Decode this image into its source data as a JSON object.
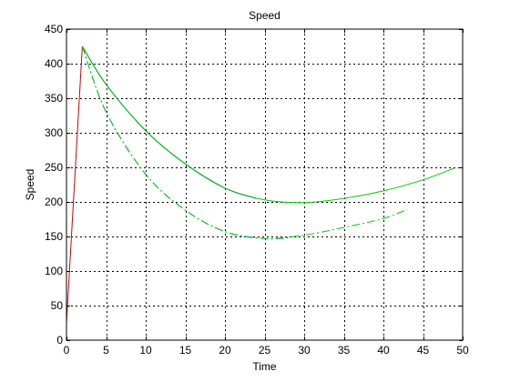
{
  "chart_data": {
    "type": "line",
    "title": "Speed",
    "xlabel": "Time",
    "ylabel": "Speed",
    "xlim": [
      0,
      50
    ],
    "ylim": [
      0,
      450
    ],
    "xticks": [
      0,
      5,
      10,
      15,
      20,
      25,
      30,
      35,
      40,
      45,
      50
    ],
    "yticks": [
      0,
      50,
      100,
      150,
      200,
      250,
      300,
      350,
      400,
      450
    ],
    "grid": true,
    "grid_style": "dotted",
    "series": [
      {
        "color": "#d40000",
        "style": "solid",
        "x": [
          0,
          2
        ],
        "y": [
          25,
          425
        ]
      },
      {
        "color": "#0000aa",
        "style": "solid",
        "x": [
          2,
          5,
          10,
          15,
          20,
          24
        ],
        "y": [
          425,
          370,
          303,
          255,
          220,
          205
        ]
      },
      {
        "color": "#00cc00",
        "style": "solid",
        "x": [
          2,
          5,
          10,
          15,
          20,
          25,
          30,
          35,
          40,
          45,
          49
        ],
        "y": [
          425,
          370,
          303,
          255,
          220,
          203,
          199,
          205,
          216,
          232,
          249
        ]
      },
      {
        "color": "#006699",
        "style": "dashed",
        "x": [
          2,
          5,
          10,
          15,
          20,
          25,
          28
        ],
        "y": [
          425,
          330,
          240,
          188,
          157,
          147,
          148
        ]
      },
      {
        "color": "#00cc00",
        "style": "dashed",
        "x": [
          2,
          5,
          10,
          15,
          20,
          25,
          30,
          35,
          40,
          43
        ],
        "y": [
          425,
          330,
          240,
          188,
          157,
          147,
          152,
          163,
          176,
          189
        ]
      }
    ]
  }
}
